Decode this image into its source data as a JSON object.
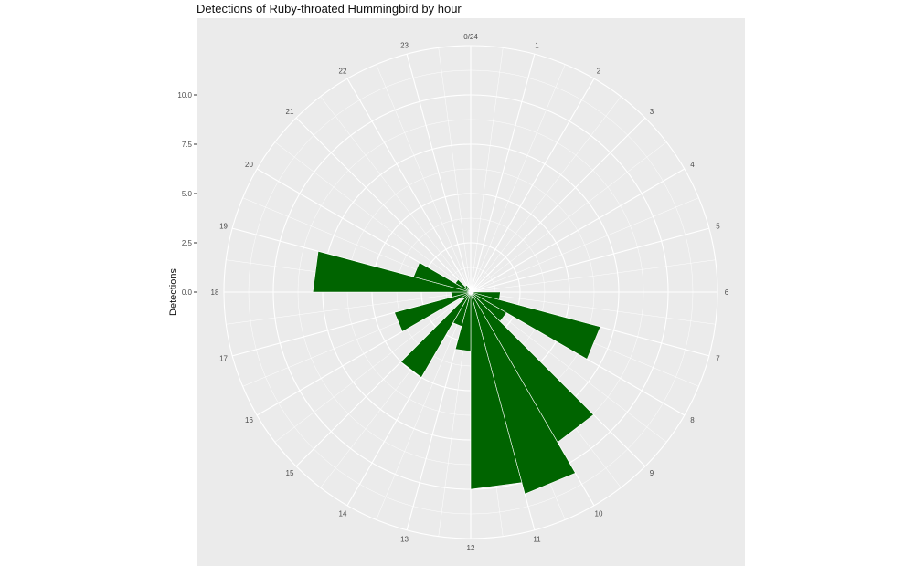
{
  "chart_data": {
    "type": "bar",
    "subtype": "polar-bar",
    "title": "Detections of Ruby-throated Hummingbird by hour",
    "xlabel": "",
    "ylabel": "Detections",
    "categories": [
      "0/24",
      "1",
      "2",
      "3",
      "4",
      "5",
      "6",
      "7",
      "8",
      "9",
      "10",
      "11",
      "12",
      "13",
      "14",
      "15",
      "16",
      "17",
      "18",
      "19",
      "20",
      "21",
      "22",
      "23"
    ],
    "hours": [
      0,
      1,
      2,
      3,
      4,
      5,
      6,
      7,
      8,
      9,
      10,
      11,
      12,
      13,
      14,
      15,
      16,
      17,
      18,
      19,
      20,
      21,
      22,
      23
    ],
    "values": [
      0,
      0,
      0,
      0,
      0,
      0,
      0,
      0,
      0,
      0,
      0,
      0,
      0,
      0,
      0,
      0,
      0,
      0,
      0,
      0,
      0,
      0,
      0,
      0
    ],
    "bars": [
      {
        "hour": 6.5,
        "value": 1.5
      },
      {
        "hour": 7.5,
        "value": 6.8
      },
      {
        "hour": 8.5,
        "value": 2.1
      },
      {
        "hour": 9.5,
        "value": 8.8
      },
      {
        "hour": 10.5,
        "value": 10.6
      },
      {
        "hour": 11.5,
        "value": 10.0
      },
      {
        "hour": 12.5,
        "value": 3.0
      },
      {
        "hour": 13.5,
        "value": 1.8
      },
      {
        "hour": 14.5,
        "value": 5.0
      },
      {
        "hour": 15.5,
        "value": 0.5
      },
      {
        "hour": 16.5,
        "value": 4.0
      },
      {
        "hour": 17.5,
        "value": 1.0
      },
      {
        "hour": 18.5,
        "value": 8.0
      },
      {
        "hour": 19.5,
        "value": 3.0
      },
      {
        "hour": 20.5,
        "value": 0.9
      },
      {
        "hour": 21.5,
        "value": 0.4
      }
    ],
    "ylim": [
      0,
      12.5
    ],
    "y_ticks": [
      0.0,
      2.5,
      5.0,
      7.5,
      10.0
    ],
    "y_tick_labels": [
      "0.0",
      "2.5",
      "5.0",
      "7.5",
      "10.0"
    ],
    "grid": true,
    "legend": "none",
    "colors": {
      "bar": "#006400",
      "panel": "#ebebeb",
      "grid": "#ffffff",
      "text": "#4d4d4d"
    }
  }
}
